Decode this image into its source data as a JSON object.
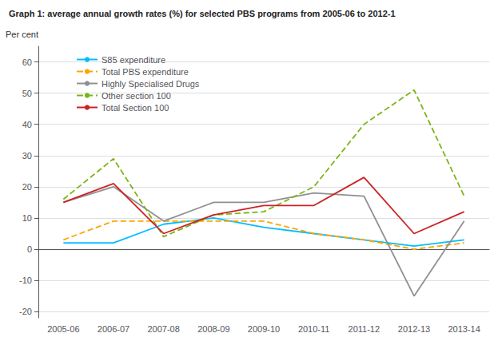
{
  "chart_data": {
    "type": "line",
    "title": "Graph 1: average annual growth rates (%) for selected PBS programs from 2005-06 to 2012-1",
    "ylabel": "Per cent",
    "categories": [
      "2005-06",
      "2006-07",
      "2007-08",
      "2008-09",
      "2009-10",
      "2010-11",
      "2011-12",
      "2012-13",
      "2013-14"
    ],
    "series": [
      {
        "name": "S85 expenditure",
        "color": "#00BFFF",
        "line_style": "solid",
        "values": [
          2,
          2,
          8,
          10,
          7,
          5,
          3,
          1,
          3
        ]
      },
      {
        "name": "Total PBS expenditure",
        "color": "#FFA500",
        "line_style": "dashed",
        "values": [
          3,
          9,
          9,
          9,
          9,
          5,
          3,
          0,
          2
        ]
      },
      {
        "name": "Highly Specialised Drugs",
        "color": "#909090",
        "line_style": "solid",
        "values": [
          15,
          20,
          9,
          15,
          15,
          18,
          17,
          -15,
          9
        ]
      },
      {
        "name": "Other section 100",
        "color": "#7CB518",
        "line_style": "dashed",
        "values": [
          16,
          29,
          4,
          11,
          12,
          20,
          40,
          51,
          17
        ]
      },
      {
        "name": "Total Section 100",
        "color": "#CC2222",
        "line_style": "solid",
        "values": [
          15,
          21,
          5,
          11,
          14,
          14,
          23,
          5,
          12
        ]
      }
    ],
    "ylim": [
      -22,
      65
    ],
    "yticks": [
      -20,
      -10,
      0,
      10,
      20,
      30,
      40,
      50,
      60
    ],
    "grid": true,
    "legend": "upper left"
  }
}
